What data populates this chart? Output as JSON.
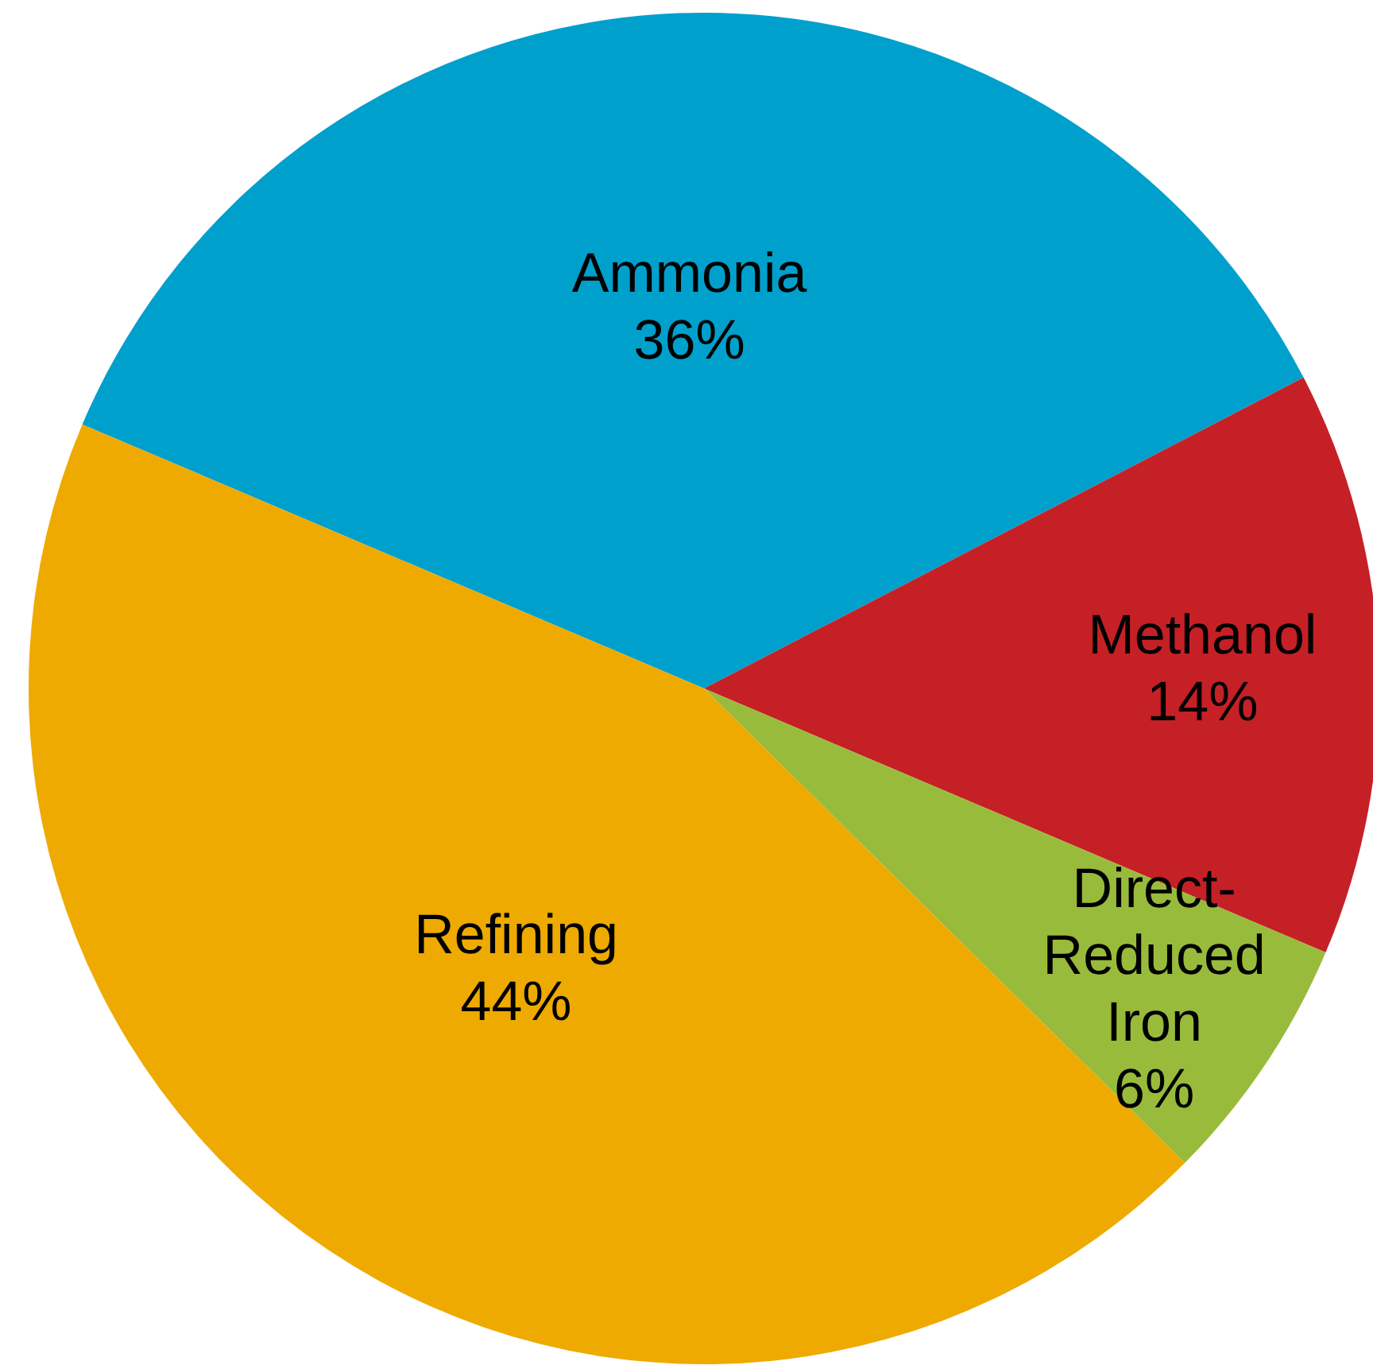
{
  "chart_data": {
    "type": "pie",
    "categories": [
      "Ammonia",
      "Methanol",
      "Direct-Reduced Iron",
      "Refining"
    ],
    "values": [
      36,
      14,
      6,
      44
    ],
    "value_labels": [
      "36%",
      "14%",
      "6%",
      "44%"
    ],
    "colors": [
      "#00a0cd",
      "#c52026",
      "#99bb3b",
      "#eeaa00"
    ]
  }
}
